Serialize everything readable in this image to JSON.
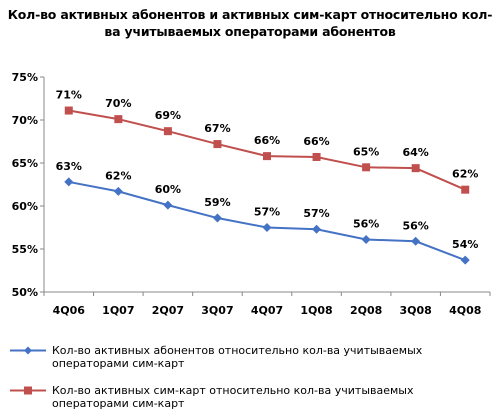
{
  "chart_data": {
    "type": "line",
    "title": "Кол-во активных абонентов и активных сим-карт относительно кол-ва учитываемых операторами абонентов",
    "categories": [
      "4Q06",
      "1Q07",
      "2Q07",
      "3Q07",
      "4Q07",
      "1Q08",
      "2Q08",
      "3Q08",
      "4Q08"
    ],
    "yticks": [
      "50%",
      "55%",
      "60%",
      "65%",
      "70%",
      "75%"
    ],
    "ylim": [
      50,
      75
    ],
    "series": [
      {
        "name": "Кол-во активных абонентов относительно кол-ва учитываемых операторами сим-карт",
        "color": "#4472c4",
        "marker": "diamond",
        "values": [
          62.8,
          61.7,
          60.1,
          58.6,
          57.5,
          57.3,
          56.1,
          55.9,
          53.7
        ],
        "labels": [
          "63%",
          "62%",
          "60%",
          "59%",
          "57%",
          "57%",
          "56%",
          "56%",
          "54%"
        ]
      },
      {
        "name": "Кол-во активных сим-карт относительно кол-ва учитываемых операторами сим-карт",
        "color": "#c0504d",
        "marker": "square",
        "values": [
          71.1,
          70.1,
          68.7,
          67.2,
          65.8,
          65.7,
          64.5,
          64.4,
          61.9
        ],
        "labels": [
          "71%",
          "70%",
          "69%",
          "67%",
          "66%",
          "66%",
          "65%",
          "64%",
          "62%"
        ]
      }
    ],
    "grid": false,
    "legend_position": "bottom"
  }
}
